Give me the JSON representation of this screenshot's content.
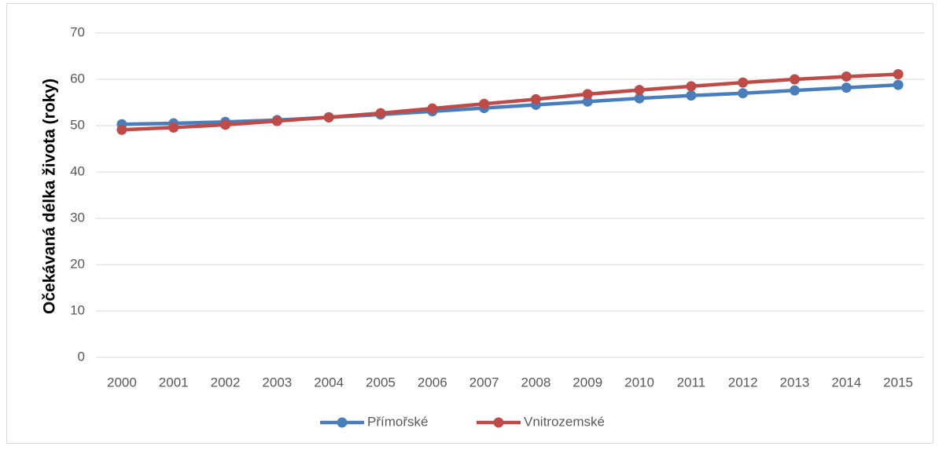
{
  "chart_data": {
    "type": "line",
    "ylabel": "Očekávaná délka života (roky)",
    "categories": [
      "2000",
      "2001",
      "2002",
      "2003",
      "2004",
      "2005",
      "2006",
      "2007",
      "2008",
      "2009",
      "2010",
      "2011",
      "2012",
      "2013",
      "2014",
      "2015"
    ],
    "series": [
      {
        "name": "Přímořské",
        "color": "#4a7ebb",
        "values": [
          50.3,
          50.5,
          50.8,
          51.2,
          51.8,
          52.4,
          53.1,
          53.8,
          54.5,
          55.2,
          55.9,
          56.5,
          57.0,
          57.6,
          58.2,
          58.8
        ]
      },
      {
        "name": "Vnitrozemské",
        "color": "#be4b48",
        "values": [
          49.1,
          49.6,
          50.2,
          51.0,
          51.8,
          52.7,
          53.7,
          54.7,
          55.7,
          56.8,
          57.7,
          58.5,
          59.3,
          60.0,
          60.6,
          61.1
        ]
      }
    ],
    "ylim": [
      0,
      70
    ],
    "yticks": [
      0,
      10,
      20,
      30,
      40,
      50,
      60,
      70
    ],
    "grid": true,
    "legend": "bottom"
  }
}
